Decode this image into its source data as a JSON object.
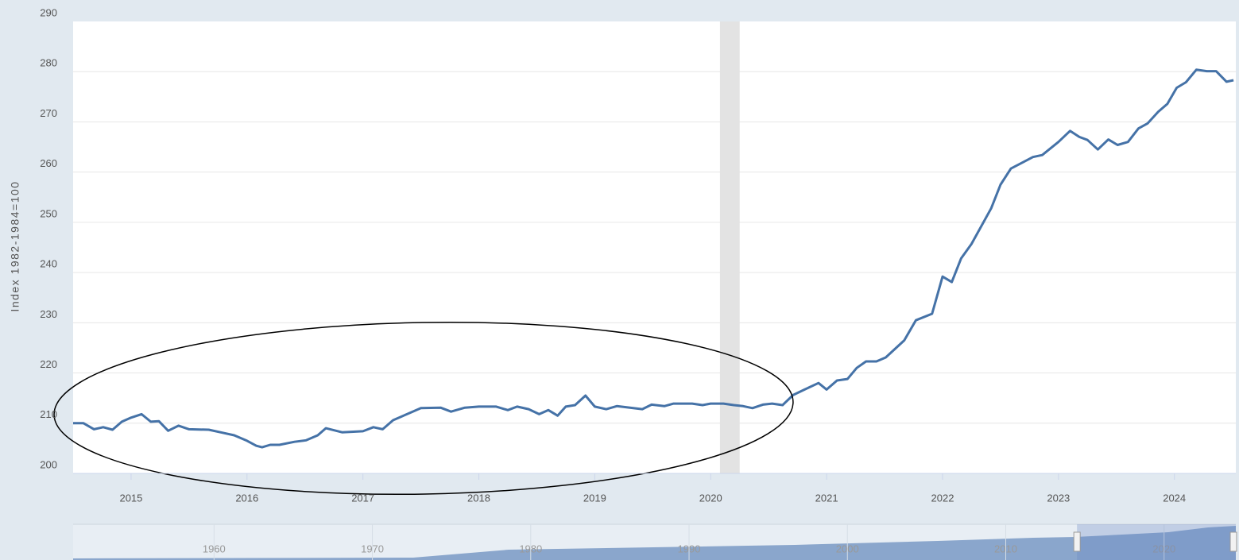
{
  "chart_data": {
    "type": "line",
    "y_label": "Index 1982-1984=100",
    "x": [
      2014.5,
      2014.59,
      2014.68,
      2014.76,
      2014.84,
      2014.92,
      2015.0,
      2015.09,
      2015.17,
      2015.24,
      2015.32,
      2015.41,
      2015.5,
      2015.67,
      2015.79,
      2015.89,
      2016.0,
      2016.08,
      2016.13,
      2016.2,
      2016.28,
      2016.41,
      2016.51,
      2016.61,
      2016.68,
      2016.82,
      2017.0,
      2017.09,
      2017.17,
      2017.26,
      2017.4,
      2017.5,
      2017.67,
      2017.76,
      2017.88,
      2018.0,
      2018.15,
      2018.25,
      2018.33,
      2018.43,
      2018.52,
      2018.6,
      2018.68,
      2018.75,
      2018.83,
      2018.92,
      2019.0,
      2019.1,
      2019.19,
      2019.41,
      2019.49,
      2019.6,
      2019.68,
      2019.84,
      2019.93,
      2020.0,
      2020.11,
      2020.2,
      2020.28,
      2020.36,
      2020.45,
      2020.53,
      2020.62,
      2020.71,
      2020.81,
      2020.93,
      2021.0,
      2021.09,
      2021.18,
      2021.26,
      2021.34,
      2021.43,
      2021.51,
      2021.67,
      2021.77,
      2021.91,
      2022.0,
      2022.08,
      2022.16,
      2022.25,
      2022.42,
      2022.5,
      2022.59,
      2022.68,
      2022.78,
      2022.86,
      2023.0,
      2023.1,
      2023.18,
      2023.25,
      2023.34,
      2023.43,
      2023.51,
      2023.6,
      2023.69,
      2023.77,
      2023.86,
      2023.94,
      2024.02,
      2024.1,
      2024.19,
      2024.28,
      2024.36,
      2024.45,
      2024.51
    ],
    "series": [
      {
        "color": "#4572a7",
        "values": [
          210,
          210,
          208.8,
          209.2,
          208.7,
          210.3,
          211.1,
          211.8,
          210.3,
          210.4,
          208.5,
          209.5,
          208.8,
          208.7,
          208.1,
          207.6,
          206.5,
          205.5,
          205.2,
          205.7,
          205.7,
          206.3,
          206.6,
          207.6,
          209,
          208.2,
          208.4,
          209.2,
          208.8,
          210.6,
          212,
          213,
          213.1,
          212.3,
          213.1,
          213.3,
          213.3,
          212.6,
          213.3,
          212.8,
          211.8,
          212.6,
          211.5,
          213.3,
          213.6,
          215.5,
          213.3,
          212.8,
          213.4,
          212.8,
          213.7,
          213.4,
          213.9,
          213.9,
          213.6,
          213.9,
          213.9,
          213.6,
          213.4,
          213,
          213.7,
          213.9,
          213.6,
          215.6,
          216.7,
          218,
          216.7,
          218.5,
          218.8,
          221,
          222.3,
          222.3,
          223.1,
          226.5,
          230.5,
          231.8,
          239.2,
          238.1,
          242.8,
          245.7,
          252.8,
          257.5,
          260.7,
          261.8,
          263,
          263.4,
          266,
          268.2,
          267,
          266.4,
          264.5,
          266.5,
          265.4,
          266,
          268.7,
          269.7,
          272,
          273.6,
          276.8,
          277.9,
          280.4,
          280.1,
          280.1,
          278,
          278.3
        ]
      }
    ],
    "xlim": [
      2014.5,
      2024.53
    ],
    "xticks": [
      2015,
      2016,
      2017,
      2018,
      2019,
      2020,
      2021,
      2022,
      2023,
      2024
    ],
    "ylim": [
      200,
      290
    ],
    "yticks": [
      200,
      210,
      220,
      230,
      240,
      250,
      260,
      270,
      280,
      290
    ],
    "grid": true,
    "recessions": [
      [
        2020.08,
        2020.25
      ]
    ],
    "navigator": {
      "xlim": [
        1951.1,
        2024.53
      ],
      "xticks": [
        1960,
        1970,
        1980,
        1990,
        2000,
        2010,
        2020
      ]
    }
  }
}
